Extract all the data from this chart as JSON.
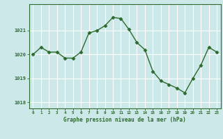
{
  "x": [
    0,
    1,
    2,
    3,
    4,
    5,
    6,
    7,
    8,
    9,
    10,
    11,
    12,
    13,
    14,
    15,
    16,
    17,
    18,
    19,
    20,
    21,
    22,
    23
  ],
  "y": [
    1020.0,
    1020.3,
    1020.1,
    1020.1,
    1019.85,
    1019.85,
    1020.1,
    1020.9,
    1021.0,
    1021.2,
    1021.55,
    1021.5,
    1021.05,
    1020.5,
    1020.2,
    1019.3,
    1018.9,
    1018.75,
    1018.6,
    1018.4,
    1019.0,
    1019.55,
    1020.3,
    1020.1
  ],
  "line_color": "#2d6a2d",
  "marker": "D",
  "marker_size": 2.5,
  "line_width": 1.0,
  "bg_color": "#cce8e8",
  "grid_color": "#ffffff",
  "xlabel": "Graphe pression niveau de la mer (hPa)",
  "xlabel_color": "#2d6a2d",
  "tick_color": "#2d6a2d",
  "axis_color": "#2d6a2d",
  "ylim": [
    1017.75,
    1022.1
  ],
  "yticks": [
    1018,
    1019,
    1020,
    1021
  ],
  "xlim": [
    -0.5,
    23.5
  ],
  "xticks": [
    0,
    1,
    2,
    3,
    4,
    5,
    6,
    7,
    8,
    9,
    10,
    11,
    12,
    13,
    14,
    15,
    16,
    17,
    18,
    19,
    20,
    21,
    22,
    23
  ]
}
